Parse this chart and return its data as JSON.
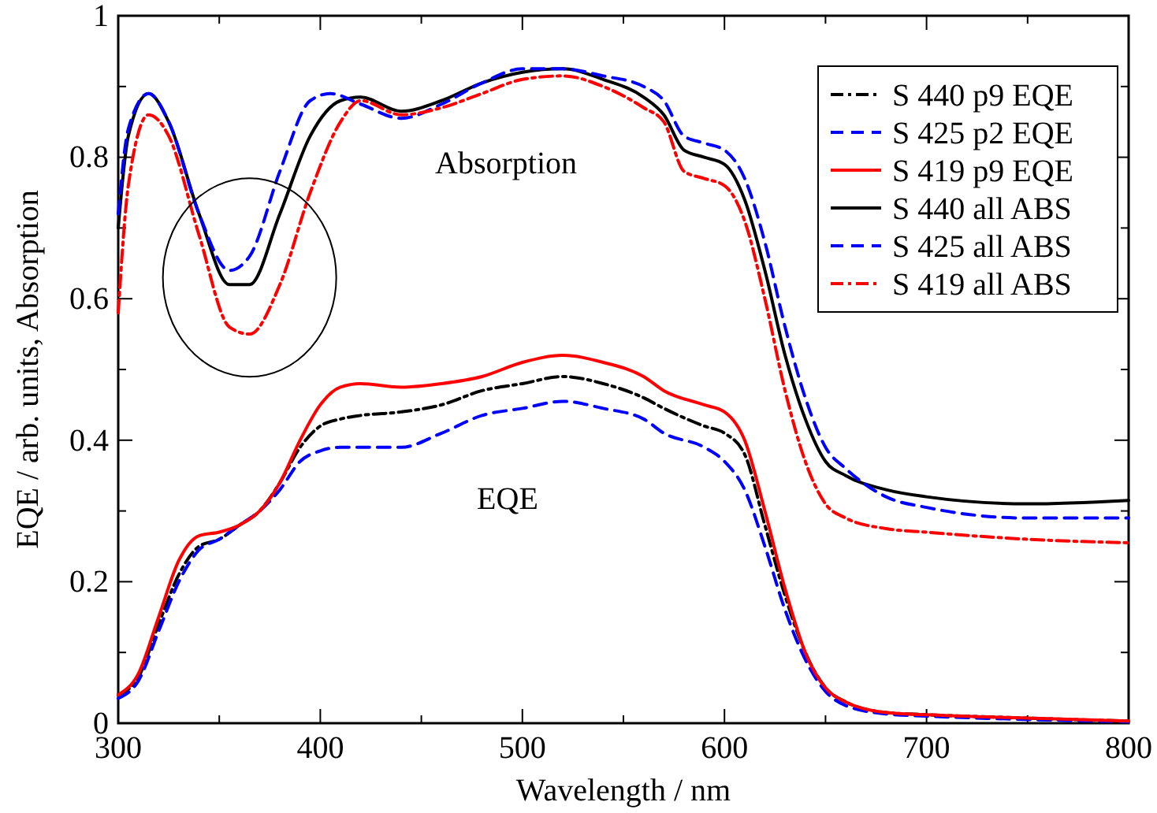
{
  "chart_data": {
    "type": "line",
    "xlabel": "Wavelength / nm",
    "ylabel": "EQE / arb. units, Absorption",
    "xlim": [
      300,
      800
    ],
    "ylim": [
      0,
      1
    ],
    "xticks": [
      300,
      {
        "value": 350,
        "label": null
      },
      400,
      {
        "value": 450,
        "label": null
      },
      500,
      {
        "value": 550,
        "label": null
      },
      600,
      {
        "value": 650,
        "label": null
      },
      700,
      {
        "value": 750,
        "label": null
      },
      800
    ],
    "yticks": [
      0,
      {
        "value": 0.1,
        "label": null
      },
      0.2,
      {
        "value": 0.3,
        "label": null
      },
      0.4,
      {
        "value": 0.5,
        "label": null
      },
      0.6,
      {
        "value": 0.7,
        "label": null
      },
      0.8,
      {
        "value": 0.9,
        "label": null
      },
      1
    ],
    "grid": false,
    "legend": "top right",
    "marker": "none",
    "annotations": [
      "Absorption",
      "EQE"
    ],
    "series": [
      {
        "name": "S 440 p9 EQE",
        "color": "#000000",
        "line_style": "dashdot",
        "x": [
          300,
          310,
          320,
          330,
          340,
          350,
          360,
          370,
          380,
          390,
          400,
          410,
          420,
          440,
          460,
          480,
          500,
          520,
          540,
          560,
          570,
          590,
          600,
          610,
          620,
          630,
          640,
          650,
          660,
          680,
          700,
          740,
          800
        ],
        "values": [
          0.04,
          0.065,
          0.14,
          0.21,
          0.25,
          0.26,
          0.28,
          0.3,
          0.34,
          0.39,
          0.42,
          0.43,
          0.435,
          0.44,
          0.45,
          0.47,
          0.48,
          0.49,
          0.48,
          0.46,
          0.445,
          0.42,
          0.41,
          0.38,
          0.28,
          0.18,
          0.1,
          0.05,
          0.03,
          0.015,
          0.012,
          0.008,
          0.003
        ]
      },
      {
        "name": "S 425 p2 EQE",
        "color": "#0000ff",
        "line_style": "dashed",
        "x": [
          300,
          310,
          320,
          330,
          340,
          350,
          360,
          370,
          380,
          390,
          400,
          410,
          420,
          440,
          460,
          480,
          500,
          520,
          540,
          560,
          570,
          590,
          600,
          610,
          620,
          630,
          640,
          650,
          660,
          680,
          700,
          740,
          800
        ],
        "values": [
          0.035,
          0.06,
          0.13,
          0.2,
          0.245,
          0.26,
          0.28,
          0.3,
          0.33,
          0.37,
          0.385,
          0.39,
          0.39,
          0.39,
          0.41,
          0.435,
          0.445,
          0.455,
          0.445,
          0.43,
          0.41,
          0.39,
          0.37,
          0.33,
          0.25,
          0.16,
          0.09,
          0.045,
          0.025,
          0.013,
          0.01,
          0.006,
          0.002
        ]
      },
      {
        "name": "S 419 p9 EQE",
        "color": "#ff0000",
        "line_style": "solid",
        "x": [
          300,
          310,
          320,
          330,
          340,
          350,
          360,
          370,
          380,
          390,
          400,
          410,
          420,
          440,
          460,
          480,
          500,
          520,
          540,
          560,
          570,
          590,
          600,
          610,
          620,
          630,
          640,
          650,
          660,
          680,
          700,
          740,
          800
        ],
        "values": [
          0.04,
          0.07,
          0.15,
          0.23,
          0.265,
          0.27,
          0.28,
          0.3,
          0.34,
          0.4,
          0.45,
          0.475,
          0.48,
          0.475,
          0.48,
          0.49,
          0.51,
          0.52,
          0.51,
          0.49,
          0.47,
          0.45,
          0.44,
          0.4,
          0.3,
          0.19,
          0.1,
          0.05,
          0.03,
          0.015,
          0.012,
          0.008,
          0.003
        ]
      },
      {
        "name": "S 440 all ABS",
        "color": "#000000",
        "line_style": "solid",
        "x": [
          300,
          305,
          315,
          325,
          340,
          355,
          365,
          380,
          395,
          410,
          420,
          440,
          460,
          480,
          500,
          520,
          540,
          560,
          570,
          580,
          590,
          600,
          610,
          620,
          630,
          640,
          650,
          660,
          680,
          700,
          750,
          800
        ],
        "values": [
          0.7,
          0.83,
          0.89,
          0.85,
          0.72,
          0.62,
          0.62,
          0.72,
          0.83,
          0.88,
          0.885,
          0.865,
          0.88,
          0.905,
          0.92,
          0.925,
          0.91,
          0.885,
          0.86,
          0.81,
          0.8,
          0.79,
          0.74,
          0.64,
          0.52,
          0.43,
          0.37,
          0.35,
          0.33,
          0.32,
          0.31,
          0.315
        ]
      },
      {
        "name": "S 425 all ABS",
        "color": "#0000ff",
        "line_style": "dashed",
        "x": [
          300,
          305,
          315,
          325,
          340,
          355,
          365,
          380,
          395,
          405,
          420,
          440,
          460,
          480,
          500,
          520,
          540,
          560,
          570,
          580,
          590,
          600,
          610,
          620,
          630,
          640,
          650,
          660,
          680,
          700,
          750,
          800
        ],
        "values": [
          0.72,
          0.84,
          0.89,
          0.85,
          0.72,
          0.64,
          0.66,
          0.78,
          0.88,
          0.89,
          0.875,
          0.855,
          0.875,
          0.905,
          0.925,
          0.925,
          0.915,
          0.9,
          0.88,
          0.83,
          0.82,
          0.81,
          0.77,
          0.68,
          0.56,
          0.46,
          0.39,
          0.36,
          0.32,
          0.305,
          0.29,
          0.29
        ]
      },
      {
        "name": "S 419 all ABS",
        "color": "#ff0000",
        "line_style": "dashdot",
        "x": [
          300,
          305,
          315,
          325,
          340,
          355,
          365,
          380,
          395,
          410,
          420,
          440,
          460,
          480,
          500,
          520,
          540,
          560,
          570,
          580,
          590,
          600,
          610,
          620,
          630,
          640,
          650,
          660,
          680,
          700,
          750,
          800
        ],
        "values": [
          0.58,
          0.76,
          0.86,
          0.83,
          0.69,
          0.56,
          0.55,
          0.62,
          0.75,
          0.85,
          0.88,
          0.86,
          0.87,
          0.89,
          0.91,
          0.915,
          0.9,
          0.87,
          0.85,
          0.78,
          0.77,
          0.76,
          0.71,
          0.6,
          0.47,
          0.37,
          0.31,
          0.29,
          0.275,
          0.27,
          0.26,
          0.255
        ]
      }
    ]
  }
}
